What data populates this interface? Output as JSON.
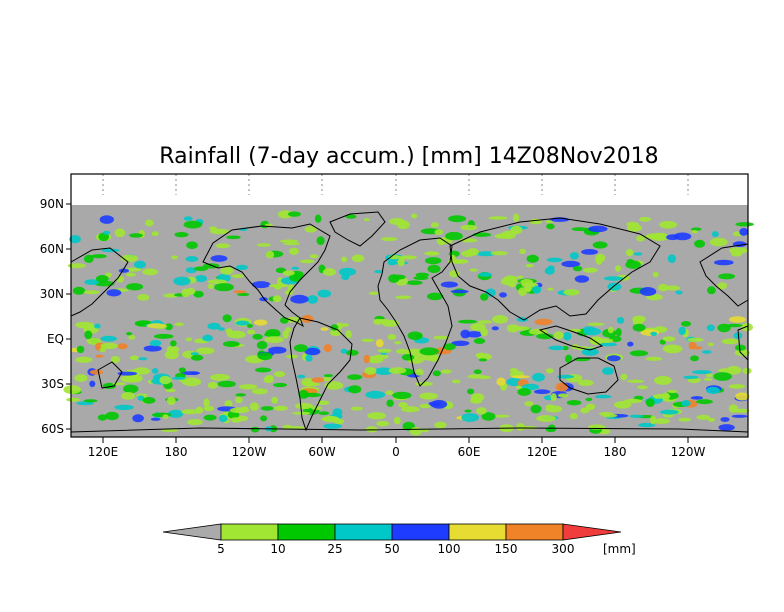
{
  "title": "Rainfall (7-day accum.) [mm] 14Z08Nov2018",
  "map": {
    "lat_labels": [
      "90N",
      "60N",
      "30N",
      "EQ",
      "30S",
      "60S"
    ],
    "lon_labels": [
      "120E",
      "180",
      "120W",
      "60W",
      "0",
      "60E",
      "120E",
      "180",
      "120W"
    ]
  },
  "colorbar": {
    "unit": "[mm]",
    "labels": [
      "5",
      "10",
      "25",
      "50",
      "100",
      "150",
      "300"
    ],
    "colors": {
      "below": "#aaaaaa",
      "bins": [
        "#a0e632",
        "#00c800",
        "#00c8c8",
        "#1e3cff",
        "#e6dc32",
        "#f08228"
      ],
      "above": "#f03c3c"
    }
  },
  "palette": {
    "ocean_background": "#a9a9a9",
    "land_outline": "#000000"
  }
}
